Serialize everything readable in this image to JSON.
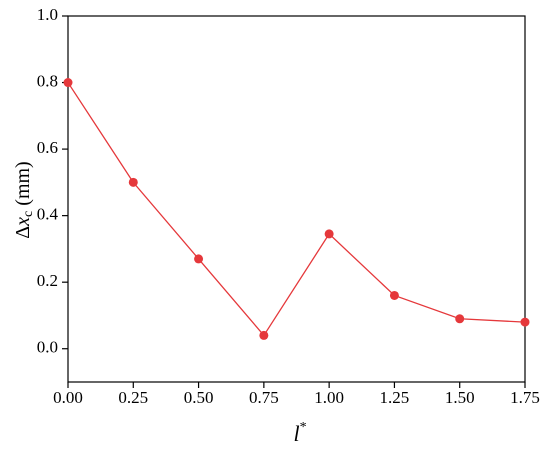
{
  "chart_data": {
    "type": "line",
    "xlabel": [
      "l",
      "*"
    ],
    "ylabel": [
      "Δ",
      "x",
      "c",
      " (mm)"
    ],
    "series": [
      {
        "color": "#e5383b",
        "x": [
          0,
          0.25,
          0.5,
          0.75,
          1.0,
          1.25,
          1.5,
          1.75
        ],
        "values": [
          0.8,
          0.5,
          0.27,
          0.04,
          0.345,
          0.16,
          0.09,
          0.08
        ]
      }
    ],
    "xlim": [
      0,
      1.75
    ],
    "xticks": [
      {
        "value": 0,
        "label": "0.00"
      },
      {
        "value": 0.25,
        "label": "0.25"
      },
      {
        "value": 0.5,
        "label": "0.50"
      },
      {
        "value": 0.75,
        "label": "0.75"
      },
      {
        "value": 1.0,
        "label": "1.00"
      },
      {
        "value": 1.25,
        "label": "1.25"
      },
      {
        "value": 1.5,
        "label": "1.50"
      },
      {
        "value": 1.75,
        "label": "1.75"
      }
    ],
    "ylim": [
      -0.1,
      1.0
    ],
    "yticks": [
      {
        "value": 0,
        "label": "0.0"
      },
      0.2,
      0.4,
      0.6,
      0.8,
      {
        "value": 1.0,
        "label": "1.0"
      }
    ]
  }
}
